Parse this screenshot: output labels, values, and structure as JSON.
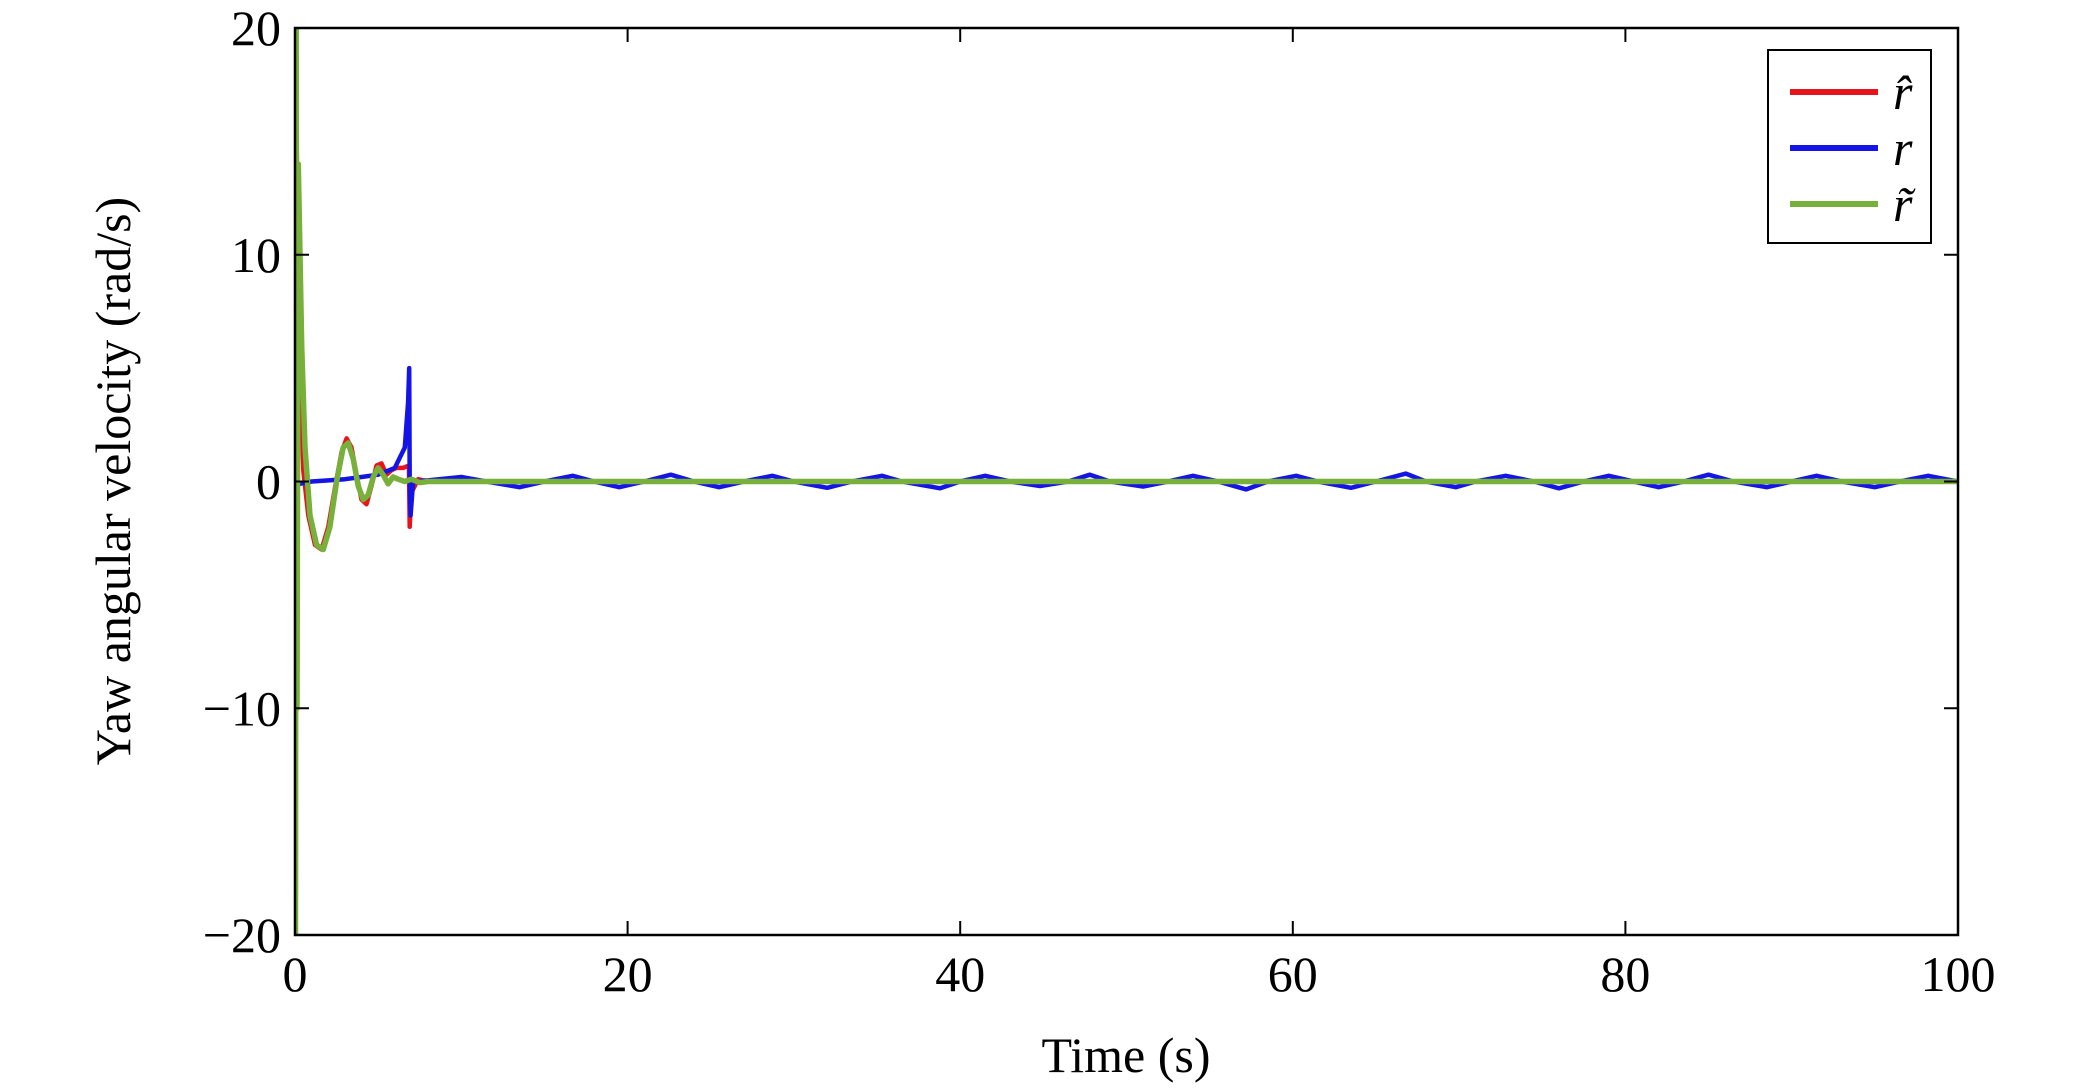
{
  "chart_data": {
    "type": "line",
    "title": "",
    "xlabel": "Time (s)",
    "ylabel": "Yaw angular velocity (rad/s)",
    "xlim": [
      0,
      100
    ],
    "ylim": [
      -20,
      20
    ],
    "xticks": [
      0,
      20,
      40,
      60,
      80,
      100
    ],
    "yticks": [
      -20,
      -10,
      0,
      10,
      20
    ],
    "xtick_labels": [
      "0",
      "20",
      "40",
      "60",
      "80",
      "100"
    ],
    "ytick_labels": [
      "−20",
      "−10",
      "0",
      "10",
      "20"
    ],
    "grid": false,
    "legend_position": "top-right",
    "series": [
      {
        "name": "r̂",
        "color": "#e8141c",
        "points": [
          [
            0,
            0
          ],
          [
            0.05,
            18
          ],
          [
            0.15,
            12
          ],
          [
            0.3,
            5
          ],
          [
            0.5,
            0.5
          ],
          [
            0.8,
            -1.5
          ],
          [
            1.2,
            -2.8
          ],
          [
            1.6,
            -3
          ],
          [
            2.0,
            -2
          ],
          [
            2.4,
            -0.3
          ],
          [
            2.8,
            1.3
          ],
          [
            3.1,
            1.9
          ],
          [
            3.4,
            1.5
          ],
          [
            3.7,
            0.3
          ],
          [
            4.0,
            -0.8
          ],
          [
            4.3,
            -1.0
          ],
          [
            4.6,
            -0.2
          ],
          [
            4.9,
            0.7
          ],
          [
            5.2,
            0.8
          ],
          [
            5.5,
            0.3
          ],
          [
            5.8,
            0.5
          ],
          [
            6.1,
            0.6
          ],
          [
            6.5,
            0.6
          ],
          [
            6.85,
            0.7
          ],
          [
            6.9,
            -2
          ],
          [
            7.0,
            -0.5
          ],
          [
            7.4,
            0.1
          ],
          [
            8,
            0
          ],
          [
            10,
            0
          ],
          [
            20,
            0
          ],
          [
            40,
            0
          ],
          [
            60,
            0
          ],
          [
            80,
            0
          ],
          [
            100,
            0
          ]
        ]
      },
      {
        "name": "r",
        "color": "#1414e6",
        "points": [
          [
            0,
            0
          ],
          [
            0.3,
            -0.1
          ],
          [
            1,
            0
          ],
          [
            2,
            0.05
          ],
          [
            3,
            0.1
          ],
          [
            4,
            0.2
          ],
          [
            5,
            0.3
          ],
          [
            6,
            0.6
          ],
          [
            6.6,
            1.5
          ],
          [
            6.8,
            3.5
          ],
          [
            6.87,
            5
          ],
          [
            6.9,
            0
          ],
          [
            6.95,
            -1.5
          ],
          [
            7.1,
            0
          ],
          [
            8,
            0.05
          ],
          [
            10,
            0.2
          ],
          [
            11.5,
            0
          ],
          [
            13.5,
            -0.25
          ],
          [
            15,
            0
          ],
          [
            16.7,
            0.25
          ],
          [
            18,
            0
          ],
          [
            19.5,
            -0.25
          ],
          [
            21,
            0
          ],
          [
            22.6,
            0.3
          ],
          [
            24,
            0
          ],
          [
            25.5,
            -0.25
          ],
          [
            27,
            0
          ],
          [
            28.7,
            0.25
          ],
          [
            30,
            0
          ],
          [
            32,
            -0.28
          ],
          [
            33.5,
            0
          ],
          [
            35.3,
            0.25
          ],
          [
            36.5,
            0
          ],
          [
            38.8,
            -0.3
          ],
          [
            40,
            0
          ],
          [
            41.5,
            0.25
          ],
          [
            43,
            0
          ],
          [
            44.8,
            -0.2
          ],
          [
            46.5,
            0
          ],
          [
            47.8,
            0.3
          ],
          [
            49,
            0
          ],
          [
            51,
            -0.22
          ],
          [
            52.5,
            0
          ],
          [
            54,
            0.25
          ],
          [
            55.5,
            0
          ],
          [
            57.2,
            -0.35
          ],
          [
            58.5,
            0
          ],
          [
            60.2,
            0.25
          ],
          [
            61.5,
            0
          ],
          [
            63.5,
            -0.28
          ],
          [
            65,
            0
          ],
          [
            66.8,
            0.35
          ],
          [
            68,
            0
          ],
          [
            69.8,
            -0.25
          ],
          [
            71,
            0
          ],
          [
            72.8,
            0.25
          ],
          [
            74.5,
            0
          ],
          [
            76,
            -0.3
          ],
          [
            77.5,
            0
          ],
          [
            79,
            0.25
          ],
          [
            80.5,
            0
          ],
          [
            82,
            -0.25
          ],
          [
            83.5,
            0
          ],
          [
            85,
            0.3
          ],
          [
            86.5,
            0
          ],
          [
            88.5,
            -0.25
          ],
          [
            90,
            0
          ],
          [
            91.5,
            0.25
          ],
          [
            93,
            0
          ],
          [
            95,
            -0.25
          ],
          [
            96.5,
            0
          ],
          [
            98.2,
            0.25
          ],
          [
            100,
            0
          ]
        ]
      },
      {
        "name": "r̃",
        "color": "#77b03a",
        "points": [
          [
            0,
            0
          ],
          [
            0.03,
            -20
          ],
          [
            0.07,
            20
          ],
          [
            0.12,
            -10
          ],
          [
            0.2,
            14
          ],
          [
            0.4,
            6
          ],
          [
            0.6,
            1.5
          ],
          [
            0.9,
            -1.5
          ],
          [
            1.3,
            -2.8
          ],
          [
            1.7,
            -3
          ],
          [
            2.1,
            -2
          ],
          [
            2.5,
            0
          ],
          [
            2.9,
            1.5
          ],
          [
            3.2,
            1.7
          ],
          [
            3.5,
            1.0
          ],
          [
            3.8,
            -0.2
          ],
          [
            4.1,
            -0.8
          ],
          [
            4.4,
            -0.6
          ],
          [
            4.7,
            0.2
          ],
          [
            5.0,
            0.6
          ],
          [
            5.3,
            0.3
          ],
          [
            5.6,
            -0.1
          ],
          [
            5.9,
            0.2
          ],
          [
            6.2,
            0.1
          ],
          [
            6.6,
            0
          ],
          [
            7.0,
            0.1
          ],
          [
            7.5,
            -0.05
          ],
          [
            8,
            0
          ],
          [
            10,
            0
          ],
          [
            20,
            0
          ],
          [
            40,
            0
          ],
          [
            60,
            0
          ],
          [
            80,
            0
          ],
          [
            100,
            0
          ]
        ]
      }
    ]
  }
}
